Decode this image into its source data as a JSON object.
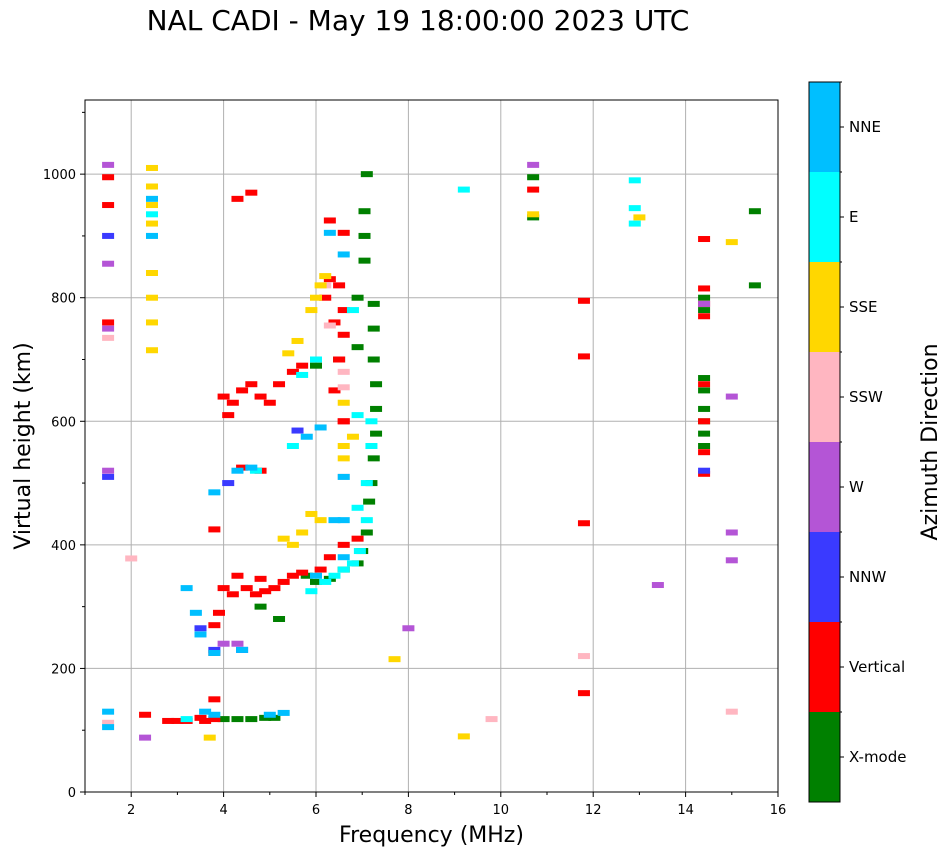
{
  "chart_data": {
    "type": "scatter",
    "title": "NAL CADI - May 19 18:00:00 2023 UTC",
    "xlabel": "Frequency (MHz)",
    "ylabel": "Virtual height (km)",
    "xlim": [
      1,
      16
    ],
    "ylim": [
      0,
      1120
    ],
    "xticks": [
      2,
      4,
      6,
      8,
      10,
      12,
      14,
      16
    ],
    "yticks": [
      0,
      200,
      400,
      600,
      800,
      1000
    ],
    "grid": true,
    "colorbar": {
      "label": "Azimuth Direction",
      "categories": [
        {
          "name": "X-mode",
          "color": "#008000"
        },
        {
          "name": "Vertical",
          "color": "#ff0000"
        },
        {
          "name": "NNW",
          "color": "#3a3aff"
        },
        {
          "name": "W",
          "color": "#b455d6"
        },
        {
          "name": "SSW",
          "color": "#ffb6c1"
        },
        {
          "name": "SSE",
          "color": "#ffd700"
        },
        {
          "name": "E",
          "color": "#00ffff"
        },
        {
          "name": "NNE",
          "color": "#00bfff"
        }
      ]
    },
    "series": [
      {
        "name": "X-mode",
        "points": [
          [
            4.0,
            118
          ],
          [
            4.3,
            118
          ],
          [
            4.6,
            118
          ],
          [
            4.9,
            120
          ],
          [
            5.1,
            120
          ],
          [
            4.8,
            300
          ],
          [
            5.2,
            280
          ],
          [
            5.8,
            350
          ],
          [
            6.0,
            340
          ],
          [
            6.3,
            345
          ],
          [
            6.6,
            360
          ],
          [
            6.9,
            370
          ],
          [
            7.0,
            390
          ],
          [
            7.1,
            420
          ],
          [
            7.15,
            470
          ],
          [
            7.2,
            500
          ],
          [
            7.25,
            540
          ],
          [
            7.3,
            580
          ],
          [
            7.3,
            620
          ],
          [
            7.3,
            660
          ],
          [
            7.25,
            700
          ],
          [
            7.25,
            750
          ],
          [
            7.25,
            790
          ],
          [
            6.9,
            720
          ],
          [
            6.9,
            800
          ],
          [
            6.5,
            700
          ],
          [
            6.0,
            690
          ],
          [
            7.05,
            860
          ],
          [
            7.05,
            900
          ],
          [
            7.05,
            940
          ],
          [
            7.1,
            1000
          ],
          [
            14.4,
            560
          ],
          [
            14.4,
            580
          ],
          [
            14.4,
            600
          ],
          [
            14.4,
            620
          ],
          [
            14.4,
            650
          ],
          [
            14.4,
            670
          ],
          [
            14.4,
            780
          ],
          [
            14.4,
            800
          ],
          [
            15.5,
            820
          ],
          [
            15.5,
            940
          ],
          [
            10.7,
            995
          ],
          [
            10.7,
            930
          ]
        ]
      },
      {
        "name": "Vertical",
        "points": [
          [
            2.3,
            125
          ],
          [
            2.8,
            115
          ],
          [
            3.2,
            115
          ],
          [
            3.6,
            115
          ],
          [
            3.8,
            118
          ],
          [
            3.0,
            115
          ],
          [
            3.5,
            120
          ],
          [
            3.8,
            150
          ],
          [
            3.8,
            225
          ],
          [
            3.8,
            270
          ],
          [
            3.9,
            290
          ],
          [
            4.0,
            330
          ],
          [
            4.2,
            320
          ],
          [
            4.5,
            330
          ],
          [
            4.7,
            320
          ],
          [
            4.9,
            325
          ],
          [
            5.1,
            330
          ],
          [
            5.3,
            340
          ],
          [
            5.5,
            350
          ],
          [
            5.7,
            355
          ],
          [
            4.8,
            345
          ],
          [
            4.3,
            350
          ],
          [
            6.1,
            360
          ],
          [
            6.3,
            380
          ],
          [
            6.6,
            400
          ],
          [
            6.9,
            410
          ],
          [
            4.0,
            640
          ],
          [
            4.2,
            630
          ],
          [
            4.4,
            650
          ],
          [
            4.6,
            660
          ],
          [
            4.8,
            640
          ],
          [
            5.0,
            630
          ],
          [
            5.2,
            660
          ],
          [
            5.5,
            680
          ],
          [
            5.7,
            690
          ],
          [
            4.1,
            610
          ],
          [
            6.4,
            650
          ],
          [
            6.5,
            700
          ],
          [
            6.6,
            600
          ],
          [
            6.6,
            740
          ],
          [
            6.6,
            780
          ],
          [
            6.5,
            820
          ],
          [
            6.6,
            600
          ],
          [
            6.4,
            760
          ],
          [
            6.3,
            830
          ],
          [
            6.2,
            800
          ],
          [
            6.3,
            925
          ],
          [
            6.6,
            905
          ],
          [
            4.4,
            525
          ],
          [
            4.8,
            520
          ],
          [
            3.8,
            425
          ],
          [
            4.6,
            970
          ],
          [
            4.3,
            960
          ],
          [
            1.5,
            995
          ],
          [
            1.5,
            950
          ],
          [
            1.5,
            760
          ],
          [
            11.8,
            795
          ],
          [
            11.8,
            705
          ],
          [
            11.8,
            435
          ],
          [
            11.8,
            160
          ],
          [
            14.4,
            515
          ],
          [
            14.4,
            550
          ],
          [
            14.4,
            600
          ],
          [
            14.4,
            660
          ],
          [
            14.4,
            770
          ],
          [
            14.4,
            790
          ],
          [
            14.4,
            815
          ],
          [
            14.4,
            895
          ],
          [
            10.7,
            975
          ]
        ]
      },
      {
        "name": "NNW",
        "points": [
          [
            1.5,
            900
          ],
          [
            1.5,
            510
          ],
          [
            3.5,
            265
          ],
          [
            3.8,
            230
          ],
          [
            4.4,
            230
          ],
          [
            5.6,
            585
          ],
          [
            4.1,
            500
          ],
          [
            14.4,
            520
          ]
        ]
      },
      {
        "name": "W",
        "points": [
          [
            1.5,
            1015
          ],
          [
            1.5,
            750
          ],
          [
            1.5,
            855
          ],
          [
            1.5,
            520
          ],
          [
            2.3,
            88
          ],
          [
            4.0,
            240
          ],
          [
            4.3,
            240
          ],
          [
            8.0,
            265
          ],
          [
            10.7,
            1015
          ],
          [
            13.4,
            335
          ],
          [
            14.4,
            790
          ],
          [
            15.0,
            640
          ],
          [
            15.0,
            420
          ],
          [
            15.0,
            375
          ]
        ]
      },
      {
        "name": "SSW",
        "points": [
          [
            1.5,
            735
          ],
          [
            1.5,
            112
          ],
          [
            2.0,
            378
          ],
          [
            6.3,
            755
          ],
          [
            6.6,
            680
          ],
          [
            6.6,
            655
          ],
          [
            6.2,
            820
          ],
          [
            6.6,
            510
          ],
          [
            9.8,
            118
          ],
          [
            11.8,
            220
          ],
          [
            15.0,
            130
          ]
        ]
      },
      {
        "name": "SSE",
        "points": [
          [
            2.45,
            1010
          ],
          [
            2.45,
            980
          ],
          [
            2.45,
            950
          ],
          [
            2.45,
            920
          ],
          [
            2.45,
            840
          ],
          [
            2.45,
            800
          ],
          [
            2.45,
            760
          ],
          [
            2.45,
            715
          ],
          [
            3.7,
            88
          ],
          [
            5.3,
            410
          ],
          [
            5.5,
            400
          ],
          [
            5.7,
            420
          ],
          [
            5.9,
            450
          ],
          [
            6.1,
            440
          ],
          [
            5.4,
            710
          ],
          [
            5.6,
            730
          ],
          [
            5.9,
            780
          ],
          [
            6.0,
            800
          ],
          [
            6.1,
            820
          ],
          [
            6.2,
            835
          ],
          [
            6.6,
            540
          ],
          [
            6.6,
            560
          ],
          [
            6.6,
            630
          ],
          [
            6.8,
            575
          ],
          [
            7.7,
            215
          ],
          [
            9.2,
            90
          ],
          [
            15.0,
            890
          ],
          [
            13.0,
            930
          ],
          [
            10.7,
            935
          ]
        ]
      },
      {
        "name": "E",
        "points": [
          [
            2.45,
            935
          ],
          [
            3.2,
            118
          ],
          [
            6.2,
            340
          ],
          [
            6.4,
            350
          ],
          [
            6.6,
            360
          ],
          [
            6.8,
            370
          ],
          [
            6.95,
            390
          ],
          [
            7.1,
            440
          ],
          [
            6.9,
            460
          ],
          [
            7.1,
            500
          ],
          [
            7.2,
            560
          ],
          [
            7.2,
            600
          ],
          [
            6.9,
            610
          ],
          [
            6.8,
            780
          ],
          [
            5.7,
            675
          ],
          [
            6.0,
            700
          ],
          [
            5.5,
            560
          ],
          [
            4.7,
            520
          ],
          [
            12.9,
            990
          ],
          [
            12.9,
            945
          ],
          [
            12.9,
            920
          ],
          [
            9.2,
            975
          ],
          [
            5.9,
            325
          ]
        ]
      },
      {
        "name": "NNE",
        "points": [
          [
            1.5,
            105
          ],
          [
            1.5,
            130
          ],
          [
            2.45,
            960
          ],
          [
            2.45,
            900
          ],
          [
            3.6,
            130
          ],
          [
            3.8,
            125
          ],
          [
            5.0,
            125
          ],
          [
            5.3,
            128
          ],
          [
            3.2,
            330
          ],
          [
            3.4,
            290
          ],
          [
            3.5,
            255
          ],
          [
            3.8,
            225
          ],
          [
            4.4,
            230
          ],
          [
            4.6,
            525
          ],
          [
            4.3,
            520
          ],
          [
            3.8,
            485
          ],
          [
            5.8,
            575
          ],
          [
            6.1,
            590
          ],
          [
            6.0,
            350
          ],
          [
            6.6,
            380
          ],
          [
            6.6,
            440
          ],
          [
            6.4,
            440
          ],
          [
            6.3,
            905
          ],
          [
            6.6,
            510
          ],
          [
            6.6,
            870
          ]
        ]
      }
    ]
  }
}
